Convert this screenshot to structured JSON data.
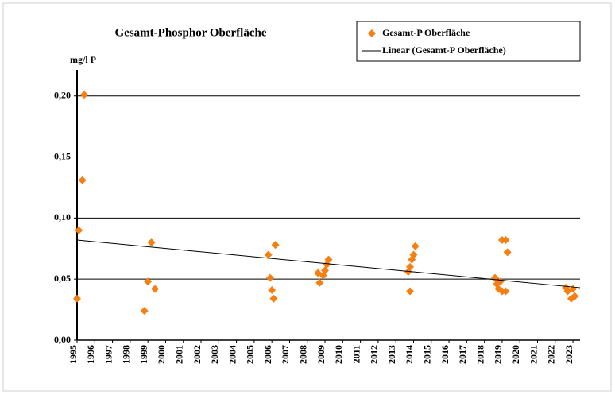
{
  "chart_data": {
    "type": "scatter",
    "title": "Gesamt-Phosphor   Oberfläche",
    "y_label": "mg/l P",
    "xlim": [
      1995,
      2023.4
    ],
    "xticks": [
      1995,
      1996,
      1997,
      1998,
      1999,
      2000,
      2001,
      2002,
      2003,
      2004,
      2005,
      2006,
      2007,
      2008,
      2009,
      2010,
      2011,
      2012,
      2013,
      2014,
      2015,
      2016,
      2017,
      2018,
      2019,
      2020,
      2021,
      2022,
      2023
    ],
    "ylim": [
      0,
      0.22
    ],
    "yticks": [
      {
        "value": 0,
        "label": "0,00"
      },
      {
        "value": 0.05,
        "label": "0,05"
      },
      {
        "value": 0.1,
        "label": "0,10"
      },
      {
        "value": 0.15,
        "label": "0,15"
      },
      {
        "value": 0.2,
        "label": "0,20"
      }
    ],
    "grid": true,
    "legend": "top-right",
    "series": [
      {
        "name": "Gesamt-P Oberfläche",
        "type": "scatter",
        "color": "#f77f10",
        "x": [
          1995.0,
          1995.1,
          1995.3,
          1995.4,
          1998.8,
          1999.0,
          1999.2,
          1999.4,
          2005.8,
          2005.9,
          2006.0,
          2006.1,
          2006.2,
          2008.6,
          2008.7,
          2008.9,
          2009.0,
          2009.1,
          2009.2,
          2013.7,
          2013.8,
          2013.8,
          2013.9,
          2014.0,
          2014.1,
          2018.6,
          2018.7,
          2018.8,
          2018.9,
          2019.0,
          2019.2,
          2019.0,
          2019.2,
          2019.3,
          2022.6,
          2022.7,
          2022.9,
          2023.0,
          2023.1
        ],
        "values": [
          0.034,
          0.09,
          0.131,
          0.201,
          0.024,
          0.048,
          0.08,
          0.042,
          0.07,
          0.051,
          0.041,
          0.034,
          0.078,
          0.055,
          0.047,
          0.053,
          0.057,
          0.062,
          0.066,
          0.056,
          0.04,
          0.06,
          0.066,
          0.07,
          0.077,
          0.051,
          0.046,
          0.042,
          0.048,
          0.082,
          0.082,
          0.04,
          0.04,
          0.072,
          0.043,
          0.04,
          0.034,
          0.042,
          0.036
        ]
      },
      {
        "name": "Linear (Gesamt-P Oberfläche)",
        "type": "line",
        "color": "#000000",
        "x": [
          1995,
          2023.4
        ],
        "values": [
          0.082,
          0.043
        ]
      }
    ]
  }
}
